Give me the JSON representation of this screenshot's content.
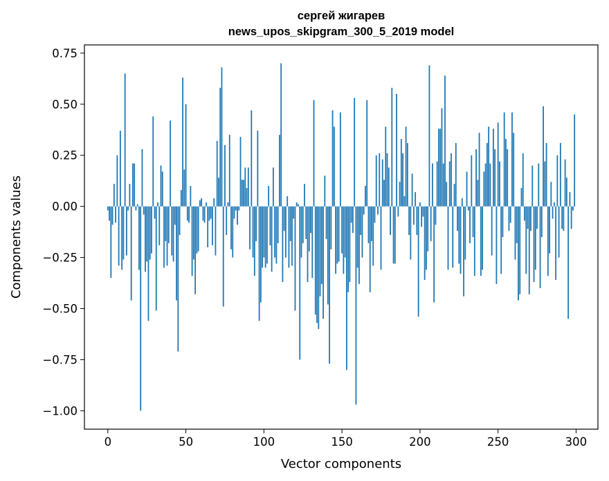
{
  "chart_data": {
    "type": "bar",
    "title": "сергей жигарев",
    "subtitle": "news_upos_skipgram_300_5_2019 model",
    "xlabel": "Vector components",
    "ylabel": "Components values",
    "xlim": [
      -15,
      314
    ],
    "ylim": [
      -1.09,
      0.79
    ],
    "xticks": [
      0,
      50,
      100,
      150,
      200,
      250,
      300
    ],
    "xtick_labels": [
      "0",
      "50",
      "100",
      "150",
      "200",
      "250",
      "300"
    ],
    "yticks": [
      -1.0,
      -0.75,
      -0.5,
      -0.25,
      0.0,
      0.25,
      0.5,
      0.75
    ],
    "ytick_labels": [
      "−1.00",
      "−0.75",
      "−0.50",
      "−0.25",
      "0.00",
      "0.25",
      "0.50",
      "0.75"
    ],
    "grid": false,
    "bar_color": "#1f77b4",
    "values": [
      -0.02,
      -0.07,
      -0.35,
      -0.09,
      0.11,
      -0.08,
      0.25,
      -0.29,
      0.37,
      -0.31,
      -0.26,
      0.65,
      -0.24,
      -0.02,
      0.11,
      -0.46,
      0.21,
      0.21,
      -0.02,
      0.01,
      -0.31,
      -1.0,
      0.28,
      -0.04,
      -0.32,
      -0.27,
      -0.56,
      -0.26,
      -0.23,
      0.44,
      -0.06,
      -0.51,
      0.02,
      -0.19,
      0.2,
      0.17,
      -0.3,
      -0.17,
      -0.29,
      -0.18,
      0.42,
      -0.24,
      -0.27,
      -0.09,
      -0.46,
      -0.71,
      -0.14,
      0.08,
      0.63,
      0.18,
      0.5,
      -0.07,
      -0.08,
      0.1,
      -0.34,
      -0.26,
      -0.43,
      -0.23,
      -0.22,
      0.03,
      0.04,
      -0.07,
      -0.08,
      0.02,
      -0.2,
      -0.07,
      -0.06,
      -0.19,
      0.04,
      -0.24,
      0.32,
      0.14,
      0.58,
      0.68,
      -0.49,
      0.3,
      -0.14,
      0.02,
      0.35,
      -0.21,
      -0.25,
      -0.06,
      -0.02,
      -0.09,
      -0.02,
      0.34,
      0.13,
      0.13,
      0.19,
      0.09,
      0.19,
      -0.21,
      0.47,
      -0.25,
      -0.34,
      -0.17,
      0.37,
      -0.56,
      -0.47,
      -0.3,
      -0.25,
      -0.3,
      -0.28,
      0.1,
      -0.19,
      -0.32,
      0.19,
      -0.25,
      -0.28,
      -0.18,
      0.35,
      0.7,
      -0.37,
      -0.12,
      -0.25,
      0.05,
      -0.3,
      -0.17,
      -0.29,
      -0.06,
      -0.51,
      0.02,
      0.01,
      -0.75,
      -0.25,
      -0.18,
      0.11,
      -0.16,
      -0.37,
      -0.22,
      -0.13,
      -0.35,
      0.52,
      -0.53,
      -0.57,
      -0.6,
      -0.44,
      -0.38,
      -0.55,
      0.15,
      -0.16,
      -0.48,
      -0.77,
      -0.21,
      0.47,
      0.39,
      -0.33,
      -0.28,
      -0.27,
      0.46,
      -0.23,
      -0.33,
      -0.25,
      -0.8,
      -0.42,
      -0.37,
      -0.08,
      -0.13,
      0.53,
      -0.97,
      -0.3,
      -0.38,
      -0.14,
      -0.25,
      -0.04,
      0.1,
      0.52,
      -0.18,
      -0.42,
      -0.17,
      -0.29,
      -0.08,
      0.25,
      -0.04,
      0.26,
      -0.31,
      0.23,
      0.13,
      0.39,
      0.26,
      0.19,
      -0.14,
      0.58,
      -0.28,
      -0.28,
      0.55,
      -0.05,
      0.12,
      0.33,
      0.26,
      0.05,
      0.39,
      0.31,
      -0.14,
      -0.26,
      0.16,
      -0.09,
      0.07,
      -0.14,
      -0.54,
      0.02,
      -0.1,
      -0.05,
      -0.36,
      -0.31,
      -0.22,
      0.69,
      -0.17,
      0.21,
      -0.47,
      -0.09,
      0.22,
      0.38,
      0.38,
      0.48,
      0.21,
      0.64,
      0.12,
      -0.31,
      0.22,
      0.26,
      -0.3,
      0.11,
      0.31,
      -0.12,
      -0.28,
      -0.33,
      0.04,
      -0.44,
      -0.26,
      0.17,
      -0.02,
      -0.18,
      0.25,
      -0.15,
      -0.34,
      0.28,
      0.13,
      0.36,
      -0.34,
      -0.31,
      0.17,
      0.21,
      0.31,
      0.39,
      0.21,
      -0.24,
      0.38,
      0.28,
      -0.38,
      0.41,
      0.22,
      -0.33,
      -0.15,
      0.46,
      0.33,
      0.28,
      -0.12,
      -0.08,
      0.46,
      0.36,
      -0.26,
      -0.18,
      -0.46,
      -0.43,
      0.09,
      0.26,
      -0.07,
      -0.33,
      -0.11,
      -0.43,
      -0.12,
      0.2,
      -0.37,
      -0.31,
      -0.11,
      0.21,
      -0.4,
      -0.15,
      0.49,
      0.22,
      0.31,
      -0.34,
      -0.23,
      0.12,
      -0.06,
      0.02,
      -0.36,
      0.25,
      -0.25,
      0.31,
      -0.11,
      -0.12,
      0.23,
      0.14,
      -0.55,
      0.07,
      -0.11,
      -0.02,
      0.45
    ]
  }
}
